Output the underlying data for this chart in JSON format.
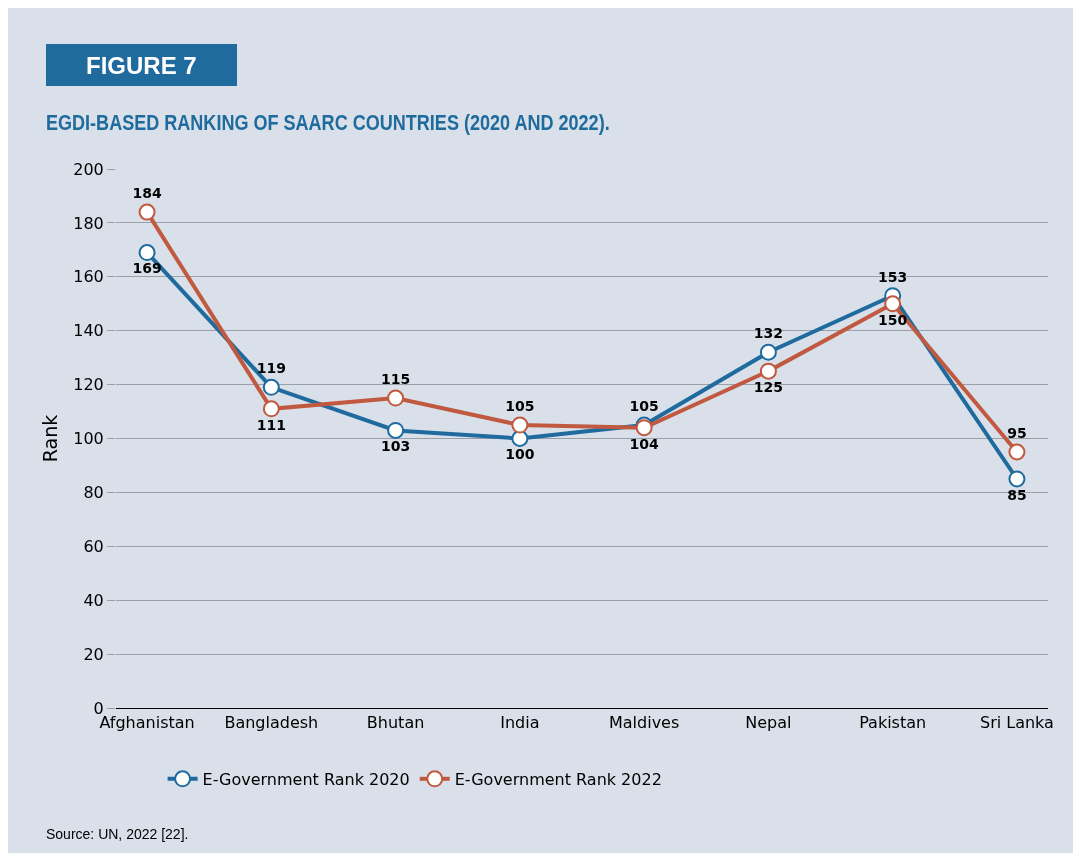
{
  "chart_data": {
    "type": "line",
    "title": "EGDI-BASED RANKING OF SAARC COUNTRIES (2020 AND 2022).",
    "ylabel": "Rank",
    "annotations": [
      "FIGURE 7",
      "Source: UN, 2022 [22]."
    ],
    "categories": [
      "Afghanistan",
      "Bangladesh",
      "Bhutan",
      "India",
      "Maldives",
      "Nepal",
      "Pakistan",
      "Sri Lanka"
    ],
    "series": [
      {
        "name": "E-Government Rank 2020",
        "color": "#1f6b9e",
        "values": [
          169,
          119,
          103,
          100,
          105,
          132,
          153,
          85
        ]
      },
      {
        "name": "E-Government Rank 2022",
        "color": "#c0593f",
        "values": [
          184,
          111,
          115,
          105,
          104,
          125,
          150,
          95
        ]
      }
    ],
    "ylim": [
      0,
      200
    ],
    "yticks": [
      0,
      20,
      40,
      60,
      80,
      100,
      120,
      140,
      160,
      180,
      200
    ],
    "grid": "y",
    "legend": "bottom",
    "marker": "circle",
    "line_style": "solid",
    "data_labels": true
  }
}
